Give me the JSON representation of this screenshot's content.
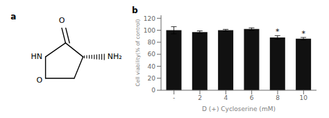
{
  "chart_data": [
    {
      "type": "structure",
      "title": "a",
      "annotations": [
        "O",
        "HN",
        "NH₂",
        "O"
      ]
    },
    {
      "type": "bar",
      "title": "b",
      "categories": [
        "-",
        "2",
        "4",
        "6",
        "8",
        "10"
      ],
      "values": [
        100,
        97,
        100,
        102,
        88,
        86
      ],
      "errors": [
        6,
        2,
        1.5,
        2,
        3,
        2
      ],
      "significance_labels": [
        null,
        null,
        null,
        null,
        "*",
        "*"
      ],
      "color": "#111111",
      "xlabel": "D (+) Cycloserine (mM)",
      "ylabel": "Cell viability(% of control)",
      "ylim": [
        0,
        125
      ],
      "yticks": [
        0,
        20,
        40,
        60,
        80,
        100,
        120
      ]
    }
  ]
}
